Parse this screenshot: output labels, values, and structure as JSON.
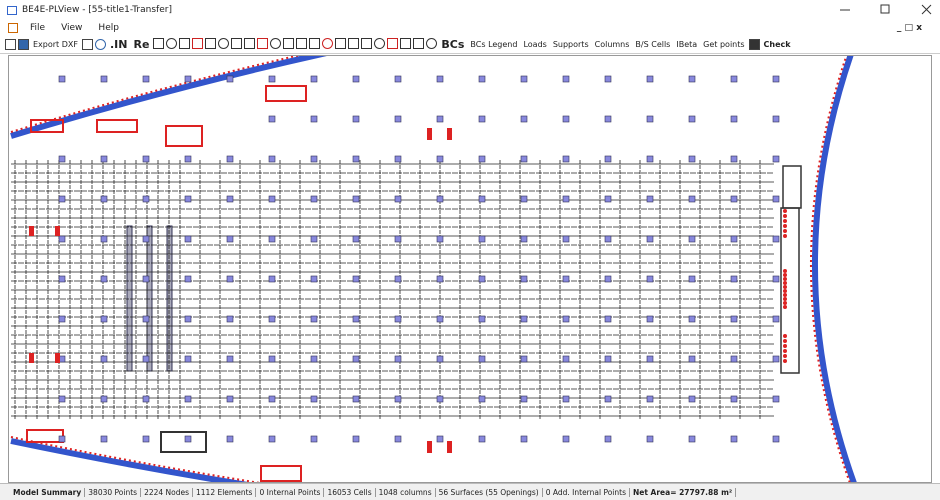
{
  "window": {
    "title": "BE4E-PLView - [55-title1-Transfer]"
  },
  "menu": [
    "File",
    "View",
    "Help"
  ],
  "toolbar": {
    "export_dxf": "Export DXF",
    "in": ".IN",
    "re": "Re",
    "bcs": "BCs",
    "buttons": [
      "BCs Legend",
      "Loads",
      "Supports",
      "Columns",
      "B/S Cells",
      "IBeta",
      "Get points"
    ],
    "check": "Check"
  },
  "status": [
    "Model Summary",
    "38030 Points",
    "2224 Nodes",
    "1112 Elements",
    "0 Internal Points",
    "16053 Cells",
    "1048 columns",
    "56 Surfaces (55 Openings)",
    "0 Add. Internal Points",
    "Net Area= 27797.88 m²"
  ]
}
